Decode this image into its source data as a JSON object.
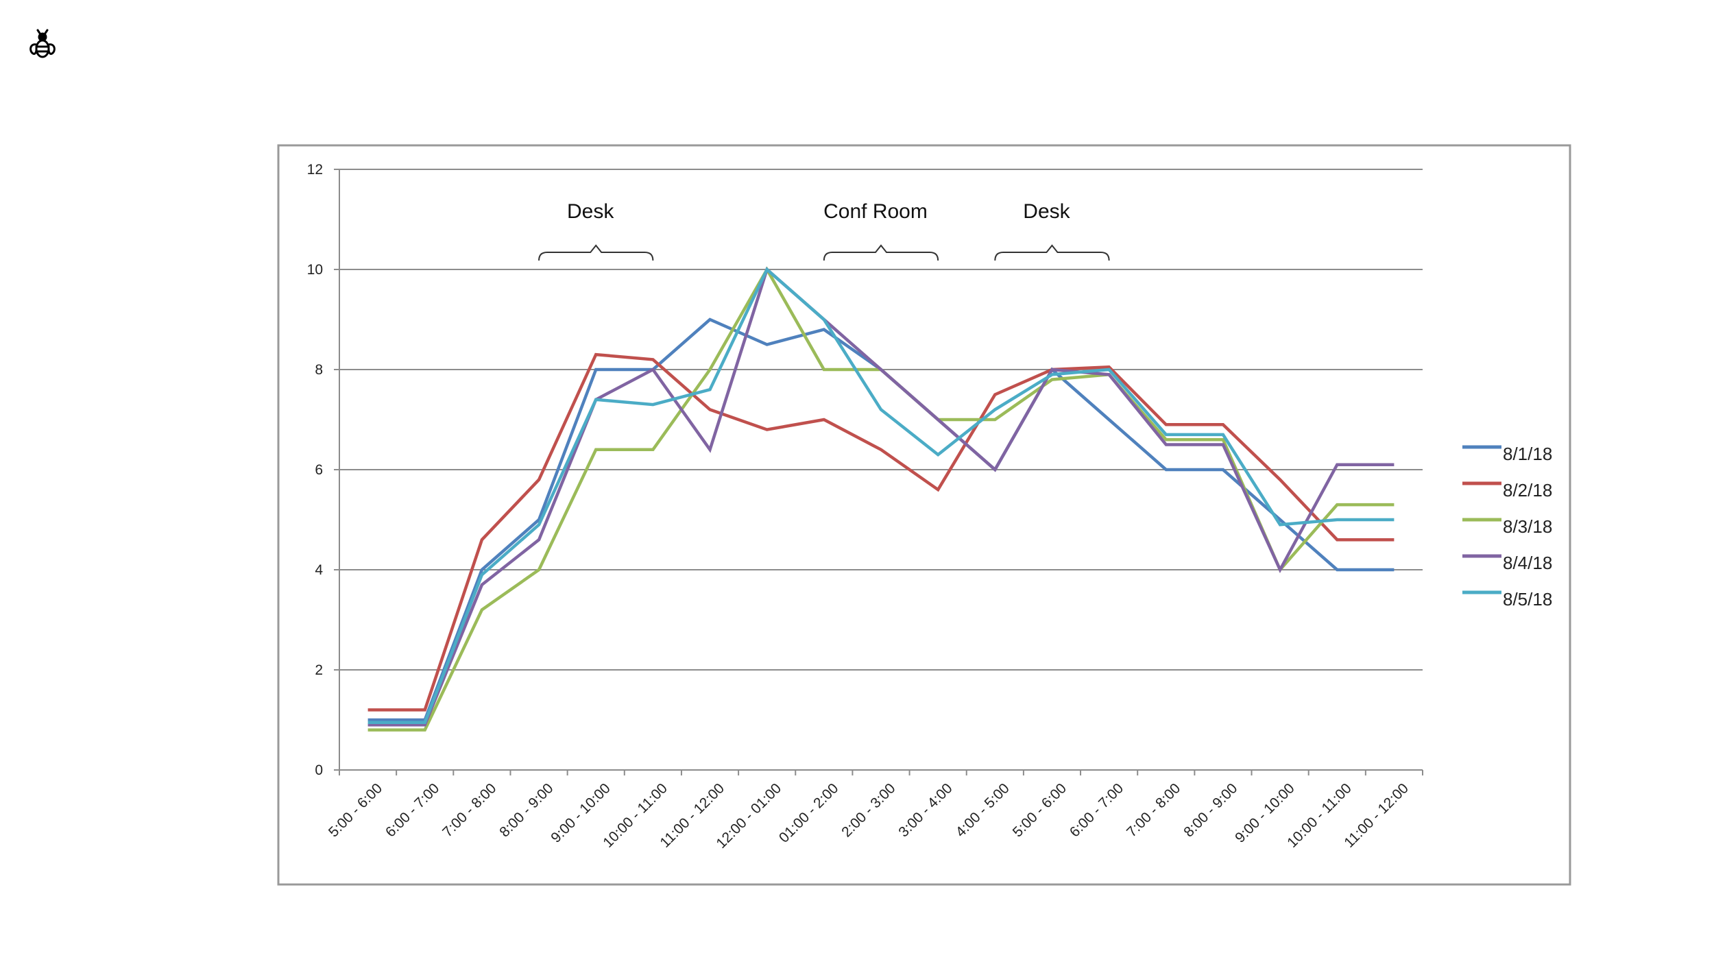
{
  "logo": {
    "icon": "bee-icon"
  },
  "chart_data": {
    "type": "line",
    "title": "",
    "xlabel": "",
    "ylabel": "",
    "ylim": [
      0,
      12
    ],
    "yticks": [
      0,
      2,
      4,
      6,
      8,
      10,
      12
    ],
    "grid": true,
    "legend": "right",
    "categories": [
      "5:00 - 6:00",
      "6:00 - 7:00",
      "7:00 - 8:00",
      "8:00 - 9:00",
      "9:00 - 10:00",
      "10:00 - 11:00",
      "11:00 - 12:00",
      "12:00 - 01:00",
      "01:00 - 2:00",
      "2:00 - 3:00",
      "3:00 - 4:00",
      "4:00 - 5:00",
      "5:00 - 6:00",
      "6:00 - 7:00",
      "7:00 - 8:00",
      "8:00 - 9:00",
      "9:00 - 10:00",
      "10:00 - 11:00",
      "11:00 - 12:00"
    ],
    "series": [
      {
        "name": "8/1/18",
        "color": "#4F81BD",
        "values": [
          1.0,
          1.0,
          4.0,
          5.0,
          8.0,
          8.0,
          9.0,
          8.5,
          8.8,
          8.0,
          7.0,
          6.0,
          8.0,
          7.0,
          6.0,
          6.0,
          5.0,
          4.0,
          4.0
        ]
      },
      {
        "name": "8/2/18",
        "color": "#C0504D",
        "values": [
          1.2,
          1.2,
          4.6,
          5.8,
          8.3,
          8.2,
          7.2,
          6.8,
          7.0,
          6.4,
          5.6,
          7.5,
          8.0,
          8.05,
          6.9,
          6.9,
          5.8,
          4.6,
          4.6
        ]
      },
      {
        "name": "8/3/18",
        "color": "#9BBB59",
        "values": [
          0.8,
          0.8,
          3.2,
          4.0,
          6.4,
          6.4,
          8.0,
          10.0,
          8.0,
          8.0,
          7.0,
          7.0,
          7.8,
          7.9,
          6.6,
          6.6,
          4.0,
          5.3,
          5.3
        ]
      },
      {
        "name": "8/4/18",
        "color": "#8064A2",
        "values": [
          0.9,
          0.9,
          3.7,
          4.6,
          7.4,
          8.0,
          6.4,
          10.0,
          9.0,
          8.0,
          7.0,
          6.0,
          8.0,
          7.9,
          6.5,
          6.5,
          4.0,
          6.1,
          6.1
        ]
      },
      {
        "name": "8/5/18",
        "color": "#4BACC6",
        "values": [
          0.95,
          0.95,
          3.9,
          4.9,
          7.4,
          7.3,
          7.6,
          10.0,
          9.0,
          7.2,
          6.3,
          7.2,
          7.9,
          8.0,
          6.7,
          6.7,
          4.9,
          5.0,
          5.0
        ]
      }
    ],
    "annotations": [
      {
        "label": "Desk",
        "from_index": 3,
        "to_index": 5
      },
      {
        "label": "Conf Room",
        "from_index": 8,
        "to_index": 10
      },
      {
        "label": "Desk",
        "from_index": 11,
        "to_index": 13
      }
    ]
  }
}
